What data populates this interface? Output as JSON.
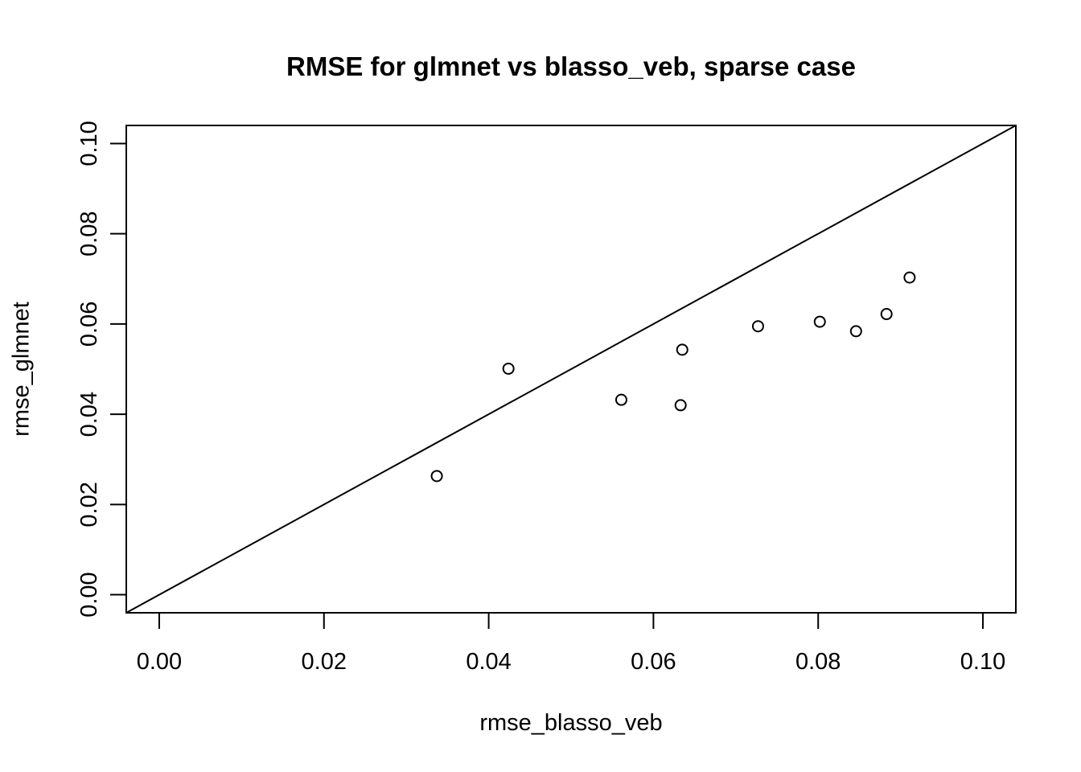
{
  "chart_data": {
    "type": "scatter",
    "title": "RMSE for glmnet vs blasso_veb, sparse case",
    "xlabel": "rmse_blasso_veb",
    "ylabel": "rmse_glmnet",
    "xlim": [
      -0.004,
      0.104
    ],
    "ylim": [
      -0.004,
      0.104
    ],
    "x_ticks": [
      0.0,
      0.02,
      0.04,
      0.06,
      0.08,
      0.1
    ],
    "y_ticks": [
      0.0,
      0.02,
      0.04,
      0.06,
      0.08,
      0.1
    ],
    "tick_decimals": 2,
    "grid": false,
    "legend": "none",
    "points": [
      {
        "x": 0.0337,
        "y": 0.0263
      },
      {
        "x": 0.0424,
        "y": 0.0501
      },
      {
        "x": 0.0561,
        "y": 0.0432
      },
      {
        "x": 0.0635,
        "y": 0.0543
      },
      {
        "x": 0.0633,
        "y": 0.042
      },
      {
        "x": 0.0727,
        "y": 0.0595
      },
      {
        "x": 0.0802,
        "y": 0.0605
      },
      {
        "x": 0.0846,
        "y": 0.0584
      },
      {
        "x": 0.0883,
        "y": 0.0622
      },
      {
        "x": 0.0911,
        "y": 0.0703
      }
    ],
    "reference_line": {
      "slope": 1,
      "intercept": 0,
      "style": "solid"
    },
    "marker": {
      "shape": "open-circle",
      "radius_px": 6.5,
      "stroke_px": 2
    },
    "colors": {
      "foreground": "#000000",
      "background": "#ffffff"
    }
  }
}
